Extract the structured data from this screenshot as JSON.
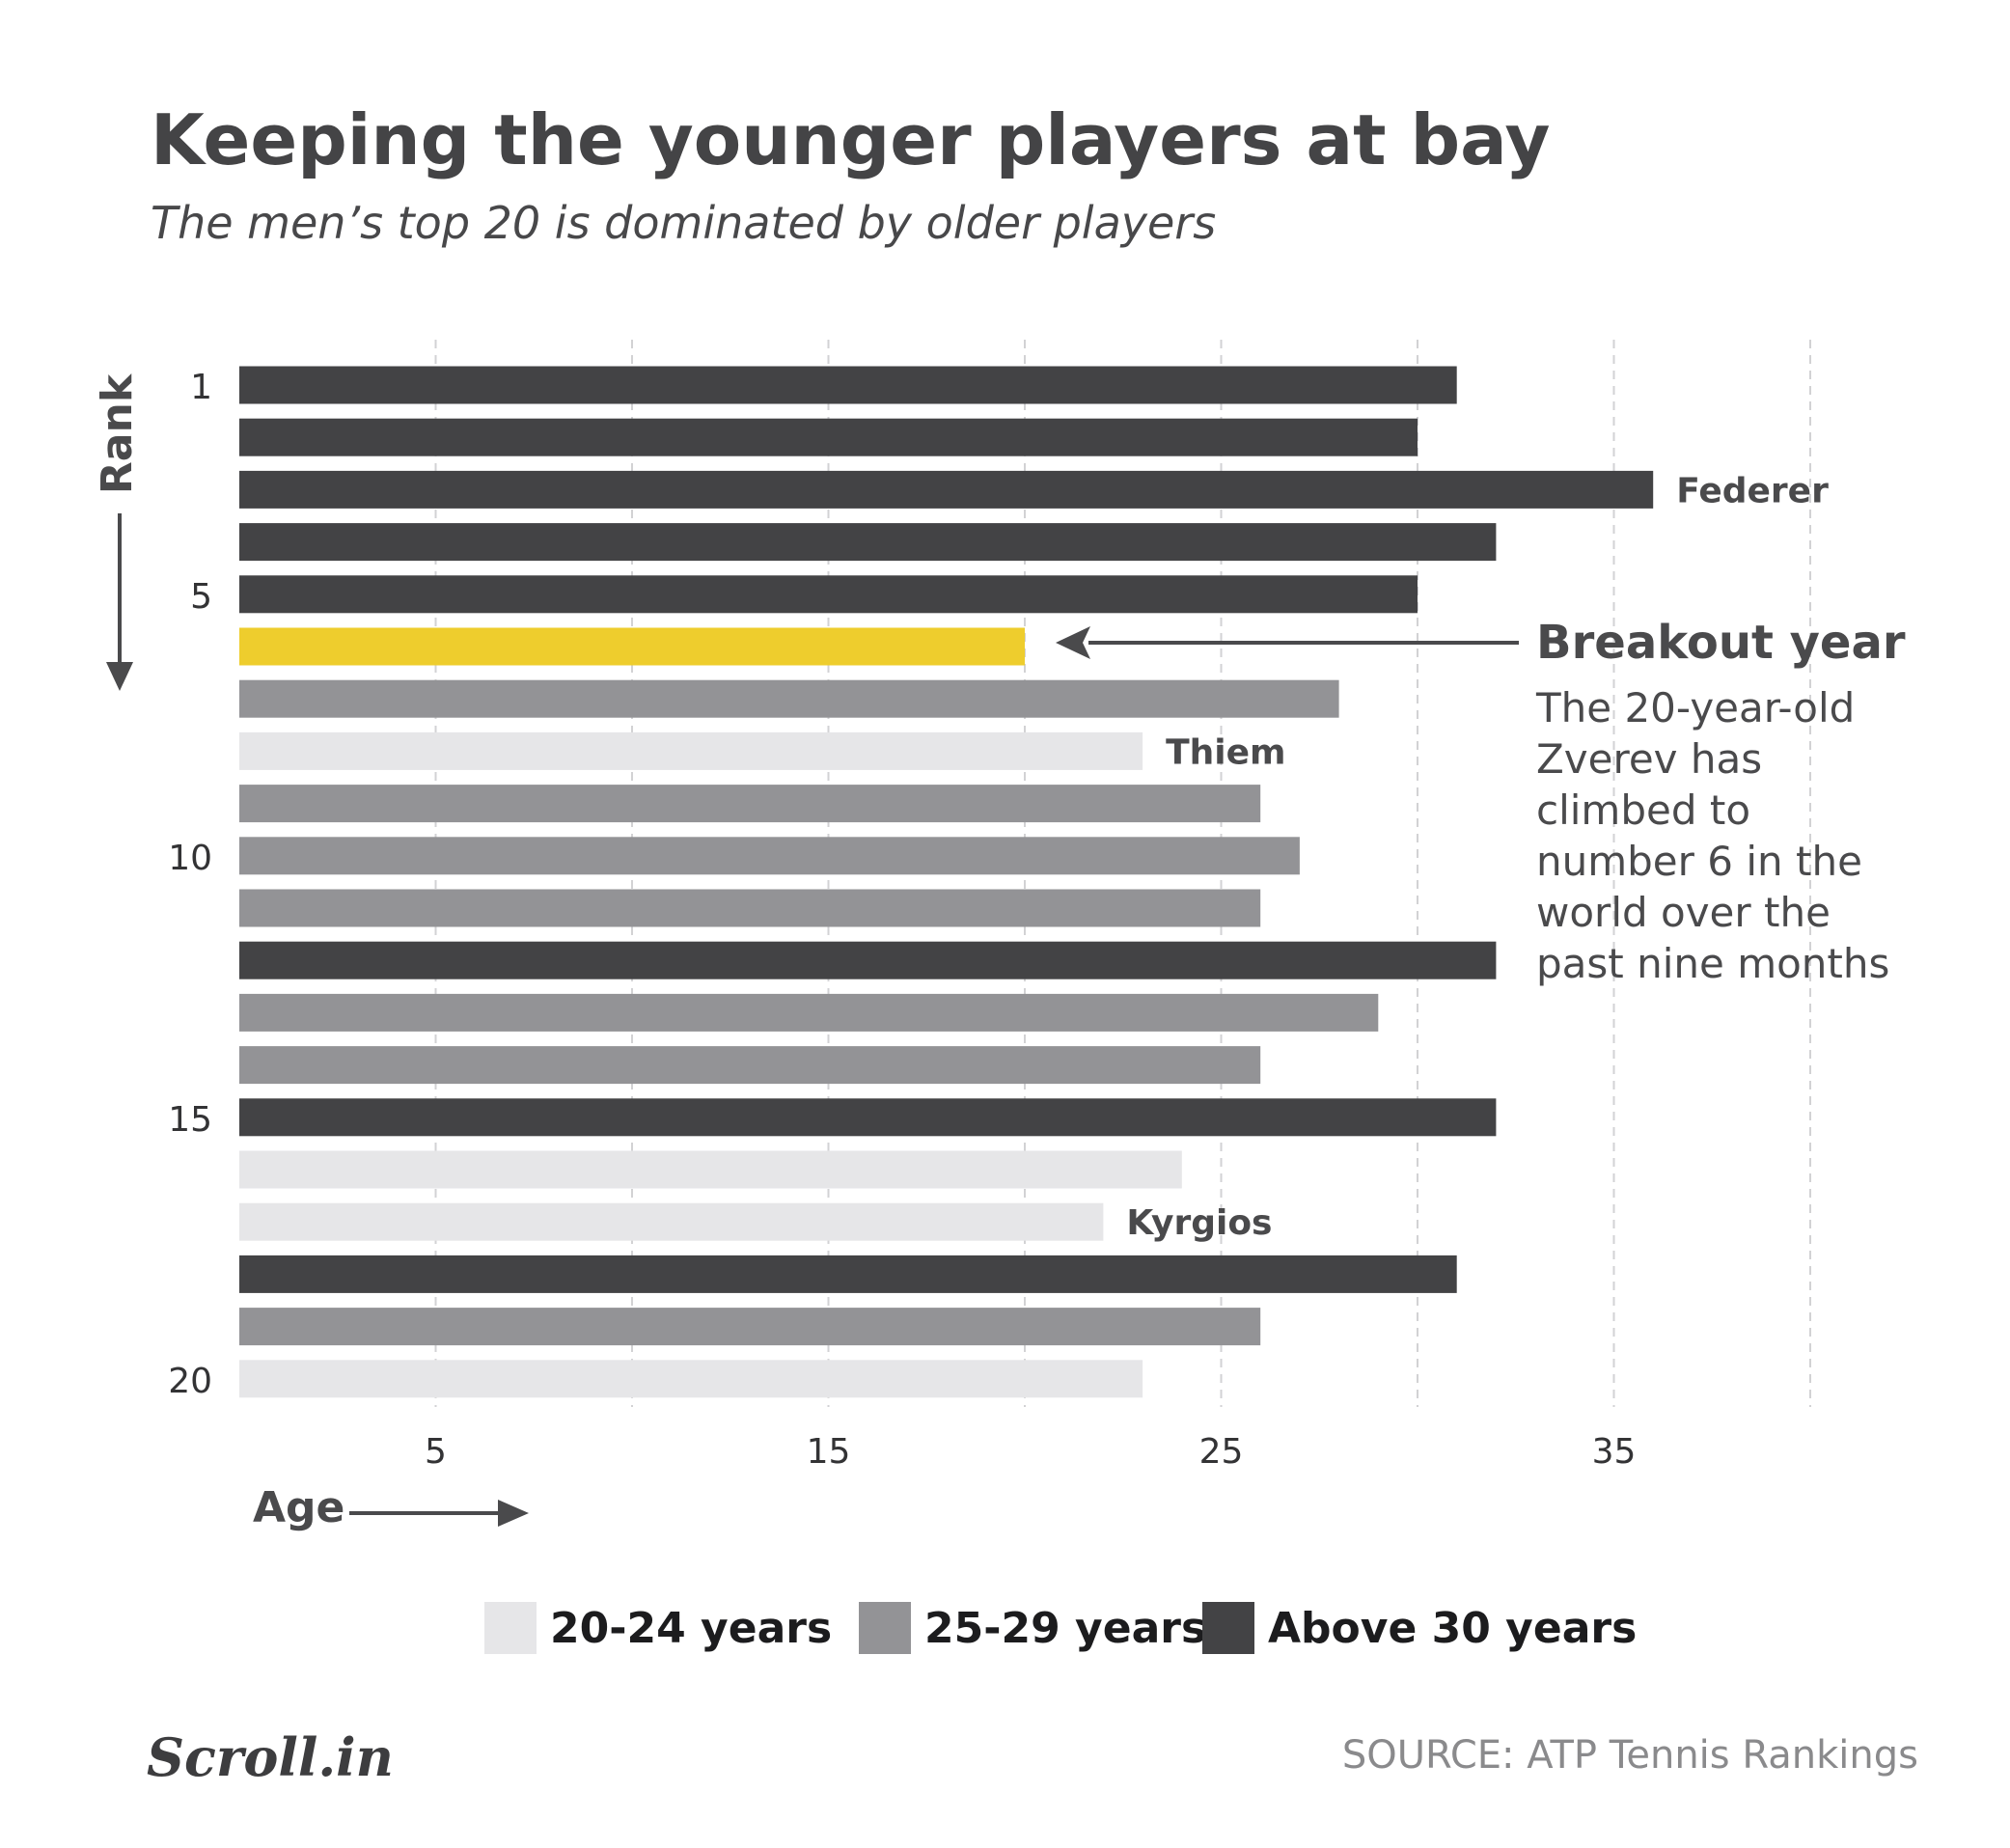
{
  "chart_data": {
    "type": "bar",
    "orientation": "horizontal",
    "title": "Keeping the younger players at bay",
    "subtitle": "The men’s top 20 is dominated by older players",
    "xlabel": "Age",
    "ylabel": "Rank",
    "xlim": [
      0,
      40
    ],
    "x_ticks": [
      5,
      15,
      25,
      35
    ],
    "gridlines": [
      5,
      10,
      15,
      20,
      25,
      30,
      35,
      40
    ],
    "grid": true,
    "y_ticks": [
      {
        "rank": 1,
        "label": "1"
      },
      {
        "rank": 5,
        "label": "5"
      },
      {
        "rank": 10,
        "label": "10"
      },
      {
        "rank": 15,
        "label": "15"
      },
      {
        "rank": 20,
        "label": "20"
      }
    ],
    "bars": [
      {
        "rank": 1,
        "age": 31,
        "group": "above30"
      },
      {
        "rank": 2,
        "age": 30,
        "group": "above30"
      },
      {
        "rank": 3,
        "age": 36,
        "group": "above30",
        "label": "Federer"
      },
      {
        "rank": 4,
        "age": 32,
        "group": "above30"
      },
      {
        "rank": 5,
        "age": 30,
        "group": "above30"
      },
      {
        "rank": 6,
        "age": 20,
        "group": "highlight"
      },
      {
        "rank": 7,
        "age": 28,
        "group": "25to29"
      },
      {
        "rank": 8,
        "age": 23,
        "group": "20to24",
        "label": "Thiem"
      },
      {
        "rank": 9,
        "age": 26,
        "group": "25to29"
      },
      {
        "rank": 10,
        "age": 27,
        "group": "25to29"
      },
      {
        "rank": 11,
        "age": 26,
        "group": "25to29"
      },
      {
        "rank": 12,
        "age": 32,
        "group": "above30"
      },
      {
        "rank": 13,
        "age": 29,
        "group": "25to29"
      },
      {
        "rank": 14,
        "age": 26,
        "group": "25to29"
      },
      {
        "rank": 15,
        "age": 32,
        "group": "above30"
      },
      {
        "rank": 16,
        "age": 24,
        "group": "20to24"
      },
      {
        "rank": 17,
        "age": 22,
        "group": "20to24",
        "label": "Kyrgios"
      },
      {
        "rank": 18,
        "age": 31,
        "group": "above30"
      },
      {
        "rank": 19,
        "age": 26,
        "group": "25to29"
      },
      {
        "rank": 20,
        "age": 23,
        "group": "20to24"
      }
    ],
    "colors": {
      "20to24": "#e6e6e8",
      "25to29": "#939396",
      "above30": "#434345",
      "highlight": "#eecd2d"
    },
    "legend": {
      "placement": "bottom",
      "items": [
        {
          "group": "20to24",
          "label": "20-24 years"
        },
        {
          "group": "25to29",
          "label": "25-29 years"
        },
        {
          "group": "above30",
          "label": "Above 30 years"
        }
      ]
    },
    "annotation": {
      "title": "Breakout year",
      "lines": [
        "The 20-year-old",
        "Zverev has",
        "climbed to",
        "number 6 in the",
        "world over the",
        "past nine months"
      ]
    }
  },
  "footer": {
    "logo": "Scroll.in",
    "source": "SOURCE: ATP Tennis Rankings"
  }
}
